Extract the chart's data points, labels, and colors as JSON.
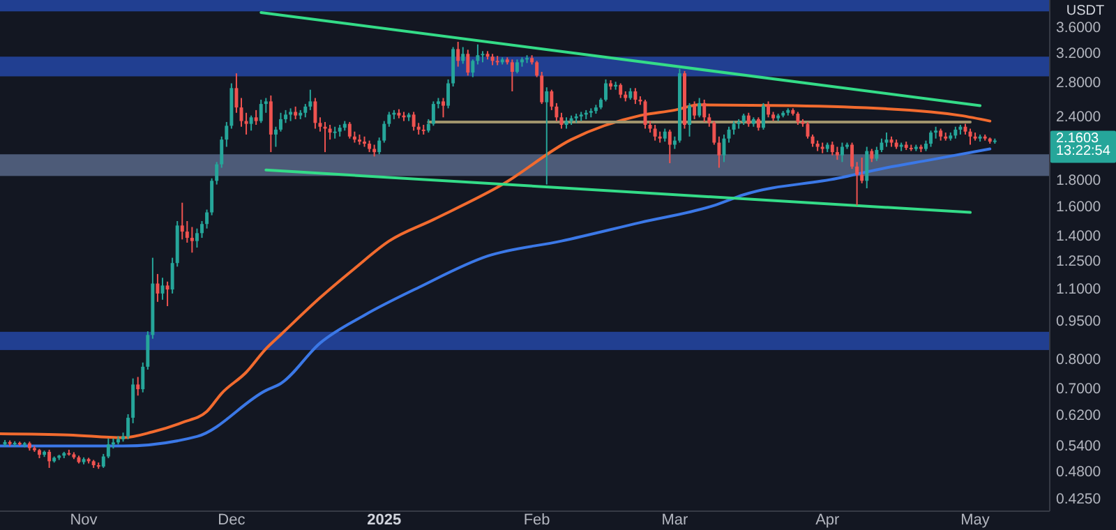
{
  "chart_data": {
    "type": "candlestick",
    "ylabel": "USDT",
    "log": true,
    "xlim": [
      "2024-10-15",
      "2025-05-16"
    ],
    "xticks": [
      {
        "value": "2024-11-01",
        "label": "Nov"
      },
      {
        "value": "2024-12-01",
        "label": "Dec"
      },
      {
        "value": "2025-01-01",
        "label": "2025"
      },
      {
        "value": "2025-02-01",
        "label": "Feb"
      },
      {
        "value": "2025-03-01",
        "label": "Mar"
      },
      {
        "value": "2025-04-01",
        "label": "Apr"
      },
      {
        "value": "2025-05-01",
        "label": "May"
      }
    ],
    "ylim": [
      0.404,
      4.085
    ],
    "yticks": [
      {
        "value": 0.425,
        "label": "0.4250"
      },
      {
        "value": 0.48,
        "label": "0.4800"
      },
      {
        "value": 0.54,
        "label": "0.5400"
      },
      {
        "value": 0.62,
        "label": "0.6200"
      },
      {
        "value": 0.7,
        "label": "0.7000"
      },
      {
        "value": 0.8,
        "label": "0.8000"
      },
      {
        "value": 0.95,
        "label": "0.9500"
      },
      {
        "value": 1.1,
        "label": "1.1000"
      },
      {
        "value": 1.25,
        "label": "1.2500"
      },
      {
        "value": 1.4,
        "label": "1.4000"
      },
      {
        "value": 1.6,
        "label": "1.6000"
      },
      {
        "value": 1.8,
        "label": "1.8000"
      },
      {
        "value": 2.4,
        "label": "2.4000"
      },
      {
        "value": 2.8,
        "label": "2.8000"
      },
      {
        "value": 3.2,
        "label": "3.2000"
      },
      {
        "value": 3.6,
        "label": "3.6000"
      }
    ],
    "bands": [
      {
        "axis": "y",
        "from": 3.88,
        "to": 4.085,
        "color": "#213f91"
      },
      {
        "axis": "y",
        "from": 2.89,
        "to": 3.16,
        "color": "#213f91"
      },
      {
        "axis": "y",
        "from": 1.84,
        "to": 2.03,
        "color": "#4d5b78"
      },
      {
        "axis": "y",
        "from": 0.836,
        "to": 0.908,
        "color": "#213f91"
      }
    ],
    "annotations": [
      "2.1603",
      "13:22:54"
    ],
    "series": [
      {
        "type": "line",
        "color": "#f26b2f",
        "x": [
          "2024-10-15",
          "2024-10-29",
          "2024-11-09",
          "2024-11-15",
          "2024-11-21",
          "2024-11-26",
          "2024-11-29",
          "2024-12-04",
          "2024-12-08",
          "2024-12-11",
          "2024-12-19",
          "2024-12-26",
          "2025-01-02",
          "2025-01-11",
          "2025-01-25",
          "2025-02-08",
          "2025-02-22",
          "2025-03-01",
          "2025-03-06",
          "2025-03-25",
          "2025-04-22",
          "2025-04-28",
          "2025-05-04"
        ],
        "values": [
          0.572,
          0.569,
          0.562,
          0.577,
          0.602,
          0.633,
          0.687,
          0.756,
          0.841,
          0.896,
          1.06,
          1.21,
          1.37,
          1.51,
          1.77,
          2.17,
          2.42,
          2.48,
          2.54,
          2.53,
          2.46,
          2.42,
          2.36
        ]
      },
      {
        "type": "line",
        "color": "#3b78e7",
        "x": [
          "2024-10-15",
          "2024-11-09",
          "2024-11-24",
          "2024-12-08",
          "2024-12-11",
          "2024-12-19",
          "2024-12-28",
          "2025-01-08",
          "2025-01-22",
          "2025-02-06",
          "2025-02-22",
          "2025-03-09",
          "2025-03-15",
          "2025-04-03",
          "2025-04-13",
          "2025-04-22",
          "2025-05-04"
        ],
        "values": [
          0.541,
          0.541,
          0.565,
          0.696,
          0.718,
          0.863,
          0.979,
          1.11,
          1.28,
          1.37,
          1.49,
          1.61,
          1.69,
          1.82,
          1.91,
          1.98,
          2.08
        ]
      },
      {
        "type": "line",
        "color": "#34dc88",
        "x": [
          "2024-12-07",
          "2025-05-02"
        ],
        "values": [
          3.86,
          2.53
        ]
      },
      {
        "type": "line",
        "color": "#34dc88",
        "x": [
          "2024-12-08",
          "2025-04-30"
        ],
        "values": [
          1.89,
          1.56
        ]
      },
      {
        "type": "line",
        "color": "#a0946c",
        "x": [
          "2025-01-10",
          "2025-04-30"
        ],
        "values": [
          2.35,
          2.35
        ]
      },
      {
        "x": [
          "2024-10-16",
          "2024-10-17",
          "2024-10-18",
          "2024-10-19",
          "2024-10-20",
          "2024-10-21",
          "2024-10-22",
          "2024-10-23",
          "2024-10-24",
          "2024-10-25",
          "2024-10-26",
          "2024-10-27",
          "2024-10-28",
          "2024-10-29",
          "2024-10-30",
          "2024-10-31",
          "2024-11-01",
          "2024-11-02",
          "2024-11-03",
          "2024-11-04",
          "2024-11-05",
          "2024-11-06",
          "2024-11-07",
          "2024-11-08",
          "2024-11-09",
          "2024-11-10",
          "2024-11-11",
          "2024-11-12",
          "2024-11-13",
          "2024-11-14",
          "2024-11-15",
          "2024-11-16",
          "2024-11-17",
          "2024-11-18",
          "2024-11-19",
          "2024-11-20",
          "2024-11-21",
          "2024-11-22",
          "2024-11-23",
          "2024-11-24",
          "2024-11-25",
          "2024-11-26",
          "2024-11-27",
          "2024-11-28",
          "2024-11-29",
          "2024-11-30",
          "2024-12-01",
          "2024-12-02",
          "2024-12-03",
          "2024-12-04",
          "2024-12-05",
          "2024-12-06",
          "2024-12-07",
          "2024-12-08",
          "2024-12-09",
          "2024-12-10",
          "2024-12-11",
          "2024-12-12",
          "2024-12-13",
          "2024-12-14",
          "2024-12-15",
          "2024-12-16",
          "2024-12-17",
          "2024-12-18",
          "2024-12-19",
          "2024-12-20",
          "2024-12-21",
          "2024-12-22",
          "2024-12-23",
          "2024-12-24",
          "2024-12-25",
          "2024-12-26",
          "2024-12-27",
          "2024-12-28",
          "2024-12-29",
          "2024-12-30",
          "2024-12-31",
          "2025-01-01",
          "2025-01-02",
          "2025-01-03",
          "2025-01-04",
          "2025-01-05",
          "2025-01-06",
          "2025-01-07",
          "2025-01-08",
          "2025-01-09",
          "2025-01-10",
          "2025-01-11",
          "2025-01-12",
          "2025-01-13",
          "2025-01-14",
          "2025-01-15",
          "2025-01-16",
          "2025-01-17",
          "2025-01-18",
          "2025-01-19",
          "2025-01-20",
          "2025-01-21",
          "2025-01-22",
          "2025-01-23",
          "2025-01-24",
          "2025-01-25",
          "2025-01-26",
          "2025-01-27",
          "2025-01-28",
          "2025-01-29",
          "2025-01-30",
          "2025-01-31",
          "2025-02-01",
          "2025-02-02",
          "2025-02-03",
          "2025-02-04",
          "2025-02-05",
          "2025-02-06",
          "2025-02-07",
          "2025-02-08",
          "2025-02-09",
          "2025-02-10",
          "2025-02-11",
          "2025-02-12",
          "2025-02-13",
          "2025-02-14",
          "2025-02-15",
          "2025-02-16",
          "2025-02-17",
          "2025-02-18",
          "2025-02-19",
          "2025-02-20",
          "2025-02-21",
          "2025-02-22",
          "2025-02-23",
          "2025-02-24",
          "2025-02-25",
          "2025-02-26",
          "2025-02-27",
          "2025-02-28",
          "2025-03-01",
          "2025-03-02",
          "2025-03-03",
          "2025-03-04",
          "2025-03-05",
          "2025-03-06",
          "2025-03-07",
          "2025-03-08",
          "2025-03-09",
          "2025-03-10",
          "2025-03-11",
          "2025-03-12",
          "2025-03-13",
          "2025-03-14",
          "2025-03-15",
          "2025-03-16",
          "2025-03-17",
          "2025-03-18",
          "2025-03-19",
          "2025-03-20",
          "2025-03-21",
          "2025-03-22",
          "2025-03-23",
          "2025-03-24",
          "2025-03-25",
          "2025-03-26",
          "2025-03-27",
          "2025-03-28",
          "2025-03-29",
          "2025-03-30",
          "2025-03-31",
          "2025-04-01",
          "2025-04-02",
          "2025-04-03",
          "2025-04-04",
          "2025-04-05",
          "2025-04-06",
          "2025-04-07",
          "2025-04-08",
          "2025-04-09",
          "2025-04-10",
          "2025-04-11",
          "2025-04-12",
          "2025-04-13",
          "2025-04-14",
          "2025-04-15",
          "2025-04-16",
          "2025-04-17",
          "2025-04-18",
          "2025-04-19",
          "2025-04-20",
          "2025-04-21",
          "2025-04-22",
          "2025-04-23",
          "2025-04-24",
          "2025-04-25",
          "2025-04-26",
          "2025-04-27",
          "2025-04-28",
          "2025-04-29",
          "2025-04-30",
          "2025-05-01",
          "2025-05-02",
          "2025-05-03",
          "2025-05-04",
          "2025-05-05"
        ],
        "ohlc": [
          [
            0.545,
            0.556,
            0.54,
            0.551
          ],
          [
            0.551,
            0.555,
            0.541,
            0.546
          ],
          [
            0.546,
            0.553,
            0.54,
            0.549
          ],
          [
            0.549,
            0.552,
            0.542,
            0.545
          ],
          [
            0.545,
            0.551,
            0.538,
            0.548
          ],
          [
            0.548,
            0.552,
            0.53,
            0.536
          ],
          [
            0.536,
            0.541,
            0.527,
            0.531
          ],
          [
            0.531,
            0.534,
            0.512,
            0.52
          ],
          [
            0.52,
            0.53,
            0.515,
            0.527
          ],
          [
            0.527,
            0.532,
            0.49,
            0.505
          ],
          [
            0.505,
            0.516,
            0.502,
            0.513
          ],
          [
            0.513,
            0.52,
            0.508,
            0.518
          ],
          [
            0.518,
            0.527,
            0.512,
            0.524
          ],
          [
            0.524,
            0.532,
            0.518,
            0.521
          ],
          [
            0.521,
            0.526,
            0.51,
            0.514
          ],
          [
            0.514,
            0.518,
            0.5,
            0.503
          ],
          [
            0.503,
            0.514,
            0.498,
            0.51
          ],
          [
            0.51,
            0.513,
            0.5,
            0.505
          ],
          [
            0.505,
            0.508,
            0.49,
            0.496
          ],
          [
            0.496,
            0.502,
            0.488,
            0.493
          ],
          [
            0.493,
            0.522,
            0.49,
            0.516
          ],
          [
            0.516,
            0.56,
            0.512,
            0.545
          ],
          [
            0.545,
            0.56,
            0.535,
            0.55
          ],
          [
            0.55,
            0.566,
            0.545,
            0.558
          ],
          [
            0.558,
            0.575,
            0.552,
            0.565
          ],
          [
            0.565,
            0.625,
            0.558,
            0.615
          ],
          [
            0.615,
            0.735,
            0.6,
            0.715
          ],
          [
            0.715,
            0.74,
            0.68,
            0.7
          ],
          [
            0.7,
            0.79,
            0.69,
            0.775
          ],
          [
            0.775,
            0.91,
            0.765,
            0.895
          ],
          [
            0.895,
            1.27,
            0.88,
            1.13
          ],
          [
            1.13,
            1.18,
            1.04,
            1.08
          ],
          [
            1.08,
            1.16,
            1.05,
            1.12
          ],
          [
            1.12,
            1.14,
            1.02,
            1.1
          ],
          [
            1.1,
            1.27,
            1.08,
            1.24
          ],
          [
            1.24,
            1.5,
            1.22,
            1.47
          ],
          [
            1.47,
            1.63,
            1.38,
            1.43
          ],
          [
            1.43,
            1.5,
            1.36,
            1.39
          ],
          [
            1.39,
            1.46,
            1.3,
            1.37
          ],
          [
            1.37,
            1.45,
            1.33,
            1.42
          ],
          [
            1.42,
            1.5,
            1.39,
            1.48
          ],
          [
            1.48,
            1.58,
            1.45,
            1.56
          ],
          [
            1.56,
            1.82,
            1.54,
            1.8
          ],
          [
            1.8,
            1.96,
            1.77,
            1.94
          ],
          [
            1.94,
            2.2,
            1.91,
            2.17
          ],
          [
            2.17,
            2.35,
            2.1,
            2.31
          ],
          [
            2.31,
            2.8,
            2.28,
            2.74
          ],
          [
            2.74,
            2.93,
            2.45,
            2.51
          ],
          [
            2.51,
            2.62,
            2.3,
            2.36
          ],
          [
            2.36,
            2.45,
            2.22,
            2.33
          ],
          [
            2.33,
            2.42,
            2.26,
            2.4
          ],
          [
            2.4,
            2.48,
            2.32,
            2.36
          ],
          [
            2.36,
            2.6,
            2.34,
            2.55
          ],
          [
            2.55,
            2.62,
            2.45,
            2.58
          ],
          [
            2.58,
            2.65,
            2.05,
            2.22
          ],
          [
            2.22,
            2.3,
            2.1,
            2.27
          ],
          [
            2.27,
            2.45,
            2.25,
            2.38
          ],
          [
            2.38,
            2.48,
            2.34,
            2.43
          ],
          [
            2.43,
            2.5,
            2.36,
            2.46
          ],
          [
            2.46,
            2.52,
            2.38,
            2.42
          ],
          [
            2.42,
            2.48,
            2.38,
            2.45
          ],
          [
            2.45,
            2.55,
            2.4,
            2.52
          ],
          [
            2.52,
            2.72,
            2.48,
            2.58
          ],
          [
            2.58,
            2.62,
            2.28,
            2.34
          ],
          [
            2.34,
            2.4,
            2.25,
            2.3
          ],
          [
            2.3,
            2.35,
            2.05,
            2.28
          ],
          [
            2.28,
            2.32,
            2.17,
            2.24
          ],
          [
            2.24,
            2.3,
            2.18,
            2.25
          ],
          [
            2.25,
            2.32,
            2.2,
            2.29
          ],
          [
            2.29,
            2.36,
            2.26,
            2.33
          ],
          [
            2.33,
            2.35,
            2.18,
            2.2
          ],
          [
            2.2,
            2.25,
            2.14,
            2.17
          ],
          [
            2.17,
            2.22,
            2.12,
            2.15
          ],
          [
            2.15,
            2.2,
            2.1,
            2.13
          ],
          [
            2.13,
            2.16,
            2.05,
            2.08
          ],
          [
            2.08,
            2.12,
            2.01,
            2.05
          ],
          [
            2.05,
            2.19,
            2.03,
            2.16
          ],
          [
            2.16,
            2.36,
            2.14,
            2.33
          ],
          [
            2.33,
            2.46,
            2.3,
            2.43
          ],
          [
            2.43,
            2.48,
            2.38,
            2.45
          ],
          [
            2.45,
            2.49,
            2.39,
            2.42
          ],
          [
            2.42,
            2.46,
            2.36,
            2.4
          ],
          [
            2.4,
            2.45,
            2.36,
            2.43
          ],
          [
            2.43,
            2.46,
            2.26,
            2.3
          ],
          [
            2.3,
            2.34,
            2.22,
            2.27
          ],
          [
            2.27,
            2.32,
            2.22,
            2.26
          ],
          [
            2.26,
            2.38,
            2.24,
            2.33
          ],
          [
            2.33,
            2.58,
            2.31,
            2.55
          ],
          [
            2.55,
            2.62,
            2.5,
            2.58
          ],
          [
            2.58,
            2.62,
            2.4,
            2.53
          ],
          [
            2.53,
            2.85,
            2.5,
            2.8
          ],
          [
            2.8,
            3.3,
            2.76,
            3.27
          ],
          [
            3.27,
            3.38,
            3.02,
            3.1
          ],
          [
            3.1,
            3.3,
            3.06,
            3.2
          ],
          [
            3.2,
            3.26,
            2.9,
            2.94
          ],
          [
            2.94,
            3.12,
            2.88,
            3.1
          ],
          [
            3.1,
            3.34,
            3.05,
            3.18
          ],
          [
            3.18,
            3.24,
            3.08,
            3.2
          ],
          [
            3.2,
            3.24,
            3.12,
            3.16
          ],
          [
            3.16,
            3.2,
            3.04,
            3.1
          ],
          [
            3.1,
            3.17,
            3.04,
            3.08
          ],
          [
            3.08,
            3.15,
            3.05,
            3.12
          ],
          [
            3.12,
            3.15,
            3.05,
            3.08
          ],
          [
            3.08,
            3.12,
            2.7,
            2.95
          ],
          [
            2.95,
            3.12,
            2.93,
            3.08
          ],
          [
            3.08,
            3.15,
            3.02,
            3.12
          ],
          [
            3.12,
            3.18,
            3.07,
            3.14
          ],
          [
            3.14,
            3.18,
            3.05,
            3.08
          ],
          [
            3.08,
            3.1,
            2.88,
            2.9
          ],
          [
            2.9,
            2.95,
            2.55,
            2.57
          ],
          [
            2.57,
            2.75,
            1.77,
            2.7
          ],
          [
            2.7,
            2.72,
            2.48,
            2.52
          ],
          [
            2.52,
            2.56,
            2.36,
            2.4
          ],
          [
            2.4,
            2.45,
            2.28,
            2.32
          ],
          [
            2.32,
            2.4,
            2.28,
            2.36
          ],
          [
            2.36,
            2.42,
            2.32,
            2.39
          ],
          [
            2.39,
            2.44,
            2.34,
            2.41
          ],
          [
            2.41,
            2.46,
            2.36,
            2.43
          ],
          [
            2.43,
            2.48,
            2.38,
            2.45
          ],
          [
            2.45,
            2.5,
            2.4,
            2.47
          ],
          [
            2.47,
            2.54,
            2.44,
            2.51
          ],
          [
            2.51,
            2.62,
            2.49,
            2.6
          ],
          [
            2.6,
            2.85,
            2.58,
            2.8
          ],
          [
            2.8,
            2.84,
            2.72,
            2.76
          ],
          [
            2.76,
            2.82,
            2.72,
            2.78
          ],
          [
            2.78,
            2.8,
            2.62,
            2.66
          ],
          [
            2.66,
            2.7,
            2.58,
            2.62
          ],
          [
            2.62,
            2.74,
            2.6,
            2.7
          ],
          [
            2.7,
            2.74,
            2.55,
            2.6
          ],
          [
            2.6,
            2.64,
            2.54,
            2.58
          ],
          [
            2.58,
            2.6,
            2.28,
            2.32
          ],
          [
            2.32,
            2.36,
            2.24,
            2.28
          ],
          [
            2.28,
            2.32,
            2.16,
            2.2
          ],
          [
            2.2,
            2.25,
            2.14,
            2.18
          ],
          [
            2.18,
            2.28,
            2.15,
            2.25
          ],
          [
            2.25,
            2.27,
            1.95,
            2.12
          ],
          [
            2.12,
            2.2,
            2.08,
            2.16
          ],
          [
            2.16,
            2.99,
            2.14,
            2.93
          ],
          [
            2.93,
            2.96,
            2.28,
            2.32
          ],
          [
            2.32,
            2.56,
            2.2,
            2.53
          ],
          [
            2.53,
            2.58,
            2.38,
            2.42
          ],
          [
            2.42,
            2.62,
            2.4,
            2.56
          ],
          [
            2.56,
            2.6,
            2.35,
            2.4
          ],
          [
            2.4,
            2.44,
            2.3,
            2.34
          ],
          [
            2.34,
            2.36,
            2.12,
            2.14
          ],
          [
            2.14,
            2.2,
            1.91,
            2.02
          ],
          [
            2.02,
            2.22,
            1.96,
            2.18
          ],
          [
            2.18,
            2.3,
            2.14,
            2.27
          ],
          [
            2.27,
            2.36,
            2.22,
            2.33
          ],
          [
            2.33,
            2.38,
            2.28,
            2.35
          ],
          [
            2.35,
            2.44,
            2.32,
            2.42
          ],
          [
            2.42,
            2.45,
            2.3,
            2.33
          ],
          [
            2.33,
            2.4,
            2.3,
            2.38
          ],
          [
            2.38,
            2.4,
            2.26,
            2.29
          ],
          [
            2.29,
            2.56,
            2.27,
            2.53
          ],
          [
            2.53,
            2.58,
            2.4,
            2.43
          ],
          [
            2.43,
            2.46,
            2.36,
            2.39
          ],
          [
            2.39,
            2.44,
            2.36,
            2.42
          ],
          [
            2.42,
            2.47,
            2.4,
            2.45
          ],
          [
            2.45,
            2.5,
            2.42,
            2.48
          ],
          [
            2.48,
            2.5,
            2.42,
            2.44
          ],
          [
            2.44,
            2.46,
            2.32,
            2.35
          ],
          [
            2.35,
            2.38,
            2.3,
            2.33
          ],
          [
            2.33,
            2.35,
            2.18,
            2.2
          ],
          [
            2.2,
            2.22,
            2.1,
            2.13
          ],
          [
            2.13,
            2.16,
            2.06,
            2.1
          ],
          [
            2.1,
            2.14,
            2.04,
            2.08
          ],
          [
            2.08,
            2.14,
            2.05,
            2.12
          ],
          [
            2.12,
            2.15,
            2.02,
            2.05
          ],
          [
            2.05,
            2.1,
            1.98,
            2.02
          ],
          [
            2.02,
            2.14,
            1.96,
            2.1
          ],
          [
            2.1,
            2.14,
            2.08,
            2.12
          ],
          [
            2.12,
            2.14,
            1.9,
            1.92
          ],
          [
            1.92,
            1.96,
            1.61,
            1.85
          ],
          [
            1.85,
            2.0,
            1.78,
            1.8
          ],
          [
            1.8,
            2.1,
            1.74,
            2.06
          ],
          [
            2.06,
            2.08,
            1.96,
            1.99
          ],
          [
            1.99,
            2.1,
            1.97,
            2.07
          ],
          [
            2.07,
            2.18,
            2.05,
            2.14
          ],
          [
            2.14,
            2.24,
            2.1,
            2.17
          ],
          [
            2.17,
            2.2,
            2.1,
            2.14
          ],
          [
            2.14,
            2.17,
            2.08,
            2.1
          ],
          [
            2.1,
            2.14,
            2.06,
            2.12
          ],
          [
            2.12,
            2.15,
            2.07,
            2.09
          ],
          [
            2.09,
            2.12,
            2.06,
            2.08
          ],
          [
            2.08,
            2.12,
            2.06,
            2.1
          ],
          [
            2.1,
            2.12,
            2.05,
            2.08
          ],
          [
            2.08,
            2.16,
            2.06,
            2.13
          ],
          [
            2.13,
            2.26,
            2.1,
            2.24
          ],
          [
            2.24,
            2.3,
            2.18,
            2.26
          ],
          [
            2.26,
            2.28,
            2.16,
            2.2
          ],
          [
            2.2,
            2.24,
            2.16,
            2.18
          ],
          [
            2.18,
            2.24,
            2.16,
            2.21
          ],
          [
            2.21,
            2.3,
            2.18,
            2.27
          ],
          [
            2.27,
            2.32,
            2.22,
            2.3
          ],
          [
            2.3,
            2.33,
            2.22,
            2.25
          ],
          [
            2.25,
            2.28,
            2.12,
            2.2
          ],
          [
            2.2,
            2.24,
            2.16,
            2.18
          ],
          [
            2.18,
            2.22,
            2.15,
            2.2
          ],
          [
            2.2,
            2.22,
            2.16,
            2.18
          ],
          [
            2.18,
            2.19,
            2.13,
            2.15
          ],
          [
            2.15,
            2.18,
            2.13,
            2.1603
          ]
        ],
        "colors": [
          "#26a69a",
          "#ef5350",
          "#26a69a",
          "#ef5350",
          "#26a69a",
          "#ef5350",
          "#ef5350",
          "#ef5350",
          "#26a69a",
          "#ef5350",
          "#26a69a",
          "#26a69a",
          "#26a69a",
          "#ef5350",
          "#ef5350",
          "#ef5350",
          "#26a69a",
          "#ef5350",
          "#ef5350",
          "#ef5350",
          "#26a69a",
          "#26a69a",
          "#26a69a",
          "#26a69a",
          "#26a69a",
          "#26a69a",
          "#26a69a",
          "#ef5350",
          "#26a69a",
          "#26a69a",
          "#26a69a",
          "#ef5350",
          "#26a69a",
          "#ef5350",
          "#26a69a",
          "#26a69a",
          "#ef5350",
          "#ef5350",
          "#ef5350",
          "#26a69a",
          "#26a69a",
          "#26a69a",
          "#26a69a",
          "#26a69a",
          "#26a69a",
          "#26a69a",
          "#26a69a",
          "#ef5350",
          "#ef5350",
          "#ef5350",
          "#26a69a",
          "#ef5350",
          "#26a69a",
          "#26a69a",
          "#ef5350",
          "#26a69a",
          "#26a69a",
          "#26a69a",
          "#26a69a",
          "#ef5350",
          "#26a69a",
          "#26a69a",
          "#26a69a",
          "#ef5350",
          "#ef5350",
          "#ef5350",
          "#ef5350",
          "#26a69a",
          "#26a69a",
          "#26a69a",
          "#ef5350",
          "#ef5350",
          "#ef5350",
          "#ef5350",
          "#ef5350",
          "#ef5350",
          "#26a69a",
          "#26a69a",
          "#26a69a",
          "#26a69a",
          "#ef5350",
          "#ef5350",
          "#26a69a",
          "#ef5350",
          "#ef5350",
          "#ef5350",
          "#26a69a",
          "#26a69a",
          "#26a69a",
          "#ef5350",
          "#26a69a",
          "#26a69a",
          "#ef5350",
          "#26a69a",
          "#ef5350",
          "#26a69a",
          "#26a69a",
          "#26a69a",
          "#ef5350",
          "#ef5350",
          "#ef5350",
          "#26a69a",
          "#ef5350",
          "#ef5350",
          "#26a69a",
          "#26a69a",
          "#26a69a",
          "#ef5350",
          "#ef5350",
          "#ef5350",
          "#26a69a",
          "#ef5350",
          "#ef5350",
          "#ef5350",
          "#26a69a",
          "#26a69a",
          "#26a69a",
          "#26a69a",
          "#26a69a",
          "#26a69a",
          "#26a69a",
          "#26a69a",
          "#26a69a",
          "#ef5350",
          "#26a69a",
          "#ef5350",
          "#ef5350",
          "#26a69a",
          "#ef5350",
          "#ef5350",
          "#ef5350",
          "#ef5350",
          "#ef5350",
          "#ef5350",
          "#26a69a",
          "#ef5350",
          "#26a69a",
          "#26a69a",
          "#ef5350",
          "#26a69a",
          "#ef5350",
          "#26a69a",
          "#ef5350",
          "#ef5350",
          "#ef5350",
          "#ef5350",
          "#26a69a",
          "#26a69a",
          "#26a69a",
          "#26a69a",
          "#26a69a",
          "#ef5350",
          "#26a69a",
          "#ef5350",
          "#26a69a",
          "#ef5350",
          "#ef5350",
          "#26a69a",
          "#26a69a",
          "#26a69a",
          "#ef5350",
          "#ef5350",
          "#ef5350",
          "#ef5350",
          "#ef5350",
          "#ef5350",
          "#ef5350",
          "#26a69a",
          "#ef5350",
          "#ef5350",
          "#26a69a",
          "#26a69a",
          "#ef5350",
          "#ef5350",
          "#ef5350",
          "#26a69a",
          "#ef5350",
          "#26a69a",
          "#26a69a",
          "#26a69a",
          "#ef5350",
          "#ef5350",
          "#26a69a",
          "#ef5350",
          "#ef5350",
          "#26a69a",
          "#ef5350",
          "#26a69a",
          "#26a69a",
          "#26a69a",
          "#ef5350",
          "#ef5350",
          "#26a69a",
          "#26a69a",
          "#26a69a",
          "#ef5350",
          "#ef5350",
          "#ef5350",
          "#26a69a",
          "#ef5350",
          "#ef5350",
          "#26a69a"
        ]
      }
    ]
  }
}
